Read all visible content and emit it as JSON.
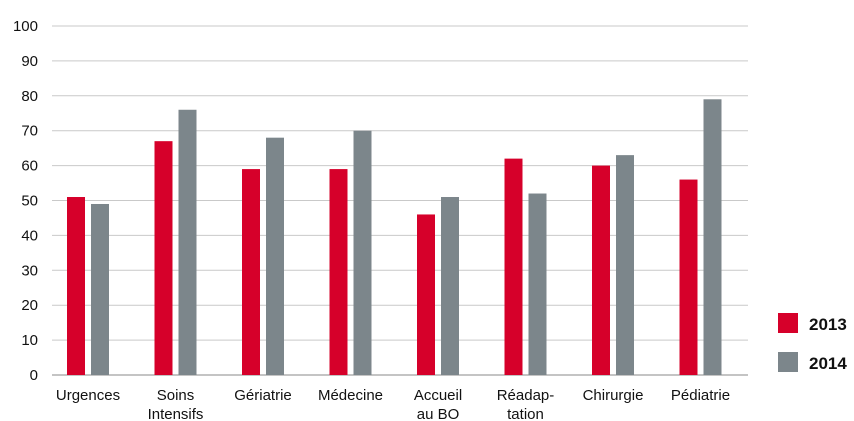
{
  "chart_data": {
    "type": "bar",
    "categories": [
      [
        "Urgences"
      ],
      [
        "Soins",
        "Intensifs"
      ],
      [
        "Gériatrie"
      ],
      [
        "Médecine"
      ],
      [
        "Accueil",
        "au BO"
      ],
      [
        "Réadap-",
        "tation"
      ],
      [
        "Chirurgie"
      ],
      [
        "Pédiatrie"
      ]
    ],
    "series": [
      {
        "name": "2013",
        "color": "#d6002a",
        "values": [
          51,
          67,
          59,
          59,
          46,
          62,
          60,
          56
        ]
      },
      {
        "name": "2014",
        "color": "#7c868b",
        "values": [
          49,
          76,
          68,
          70,
          51,
          52,
          63,
          79
        ]
      }
    ],
    "ylim": [
      0,
      100
    ],
    "yticks": [
      0,
      10,
      20,
      30,
      40,
      50,
      60,
      70,
      80,
      90,
      100
    ],
    "grid": true,
    "legend": "bottom-right",
    "title": "",
    "xlabel": "",
    "ylabel": ""
  }
}
